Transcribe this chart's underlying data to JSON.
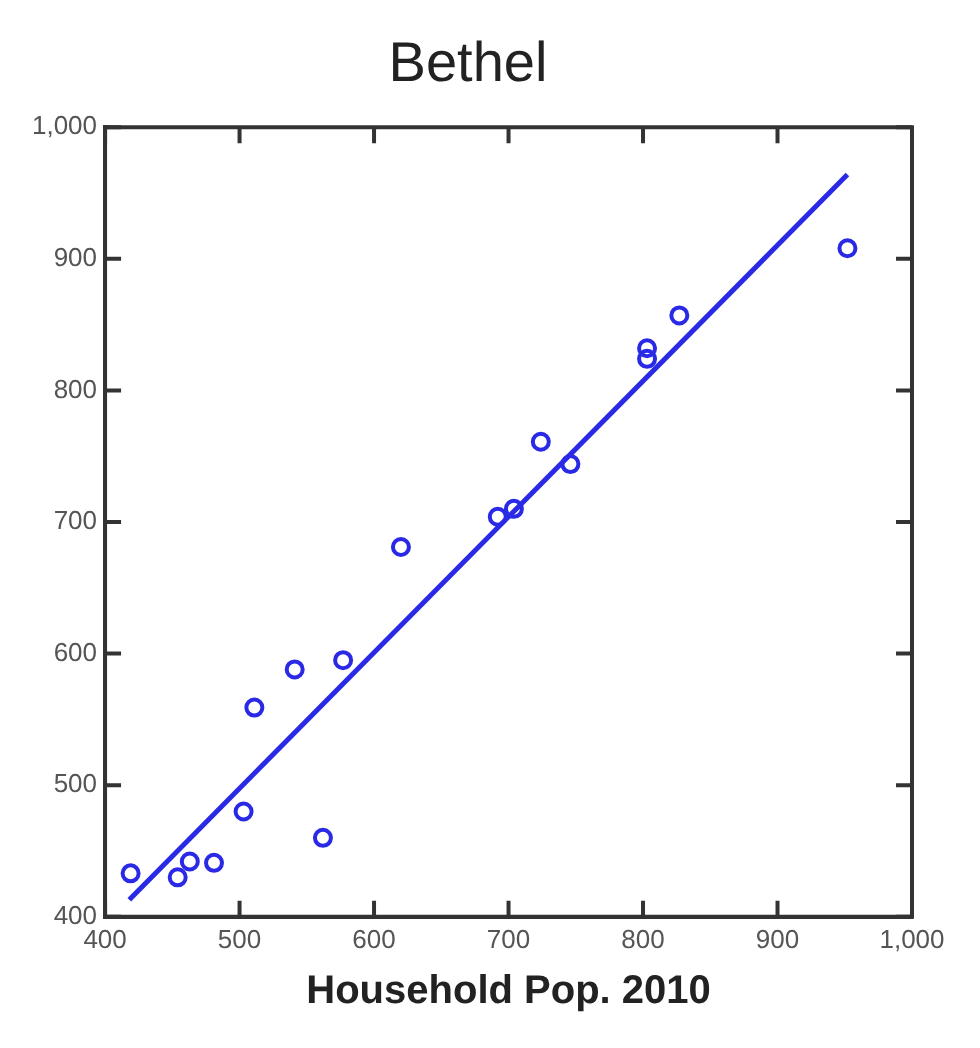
{
  "chart_data": {
    "type": "scatter",
    "title": "Bethel",
    "xlabel": "Household Pop. 2010",
    "xlim": [
      400,
      1000
    ],
    "xticks": [
      400,
      500,
      600,
      700,
      800,
      900,
      {
        "value": 1000,
        "label": "1,000"
      }
    ],
    "ylim": [
      400,
      1000
    ],
    "yticks": [
      400,
      500,
      600,
      700,
      800,
      900,
      {
        "value": 1000,
        "label": "1,000"
      }
    ],
    "grid": false,
    "legend": false,
    "marker": "circle",
    "series": [
      {
        "type": "scatter",
        "color": "#2a2ae6",
        "x": [
          419,
          454,
          463,
          481,
          503,
          511,
          541,
          562,
          577,
          620,
          692,
          704,
          724,
          746,
          803,
          803,
          827,
          952
        ],
        "values": [
          433,
          430,
          442,
          441,
          480,
          559,
          588,
          460,
          595,
          681,
          704,
          710,
          761,
          744,
          832,
          824,
          857,
          908
        ]
      },
      {
        "type": "line",
        "color": "#2a2ae6",
        "line_style": "solid",
        "marker": "none",
        "x": [
          418,
          952
        ],
        "values": [
          413,
          964
        ]
      }
    ]
  }
}
